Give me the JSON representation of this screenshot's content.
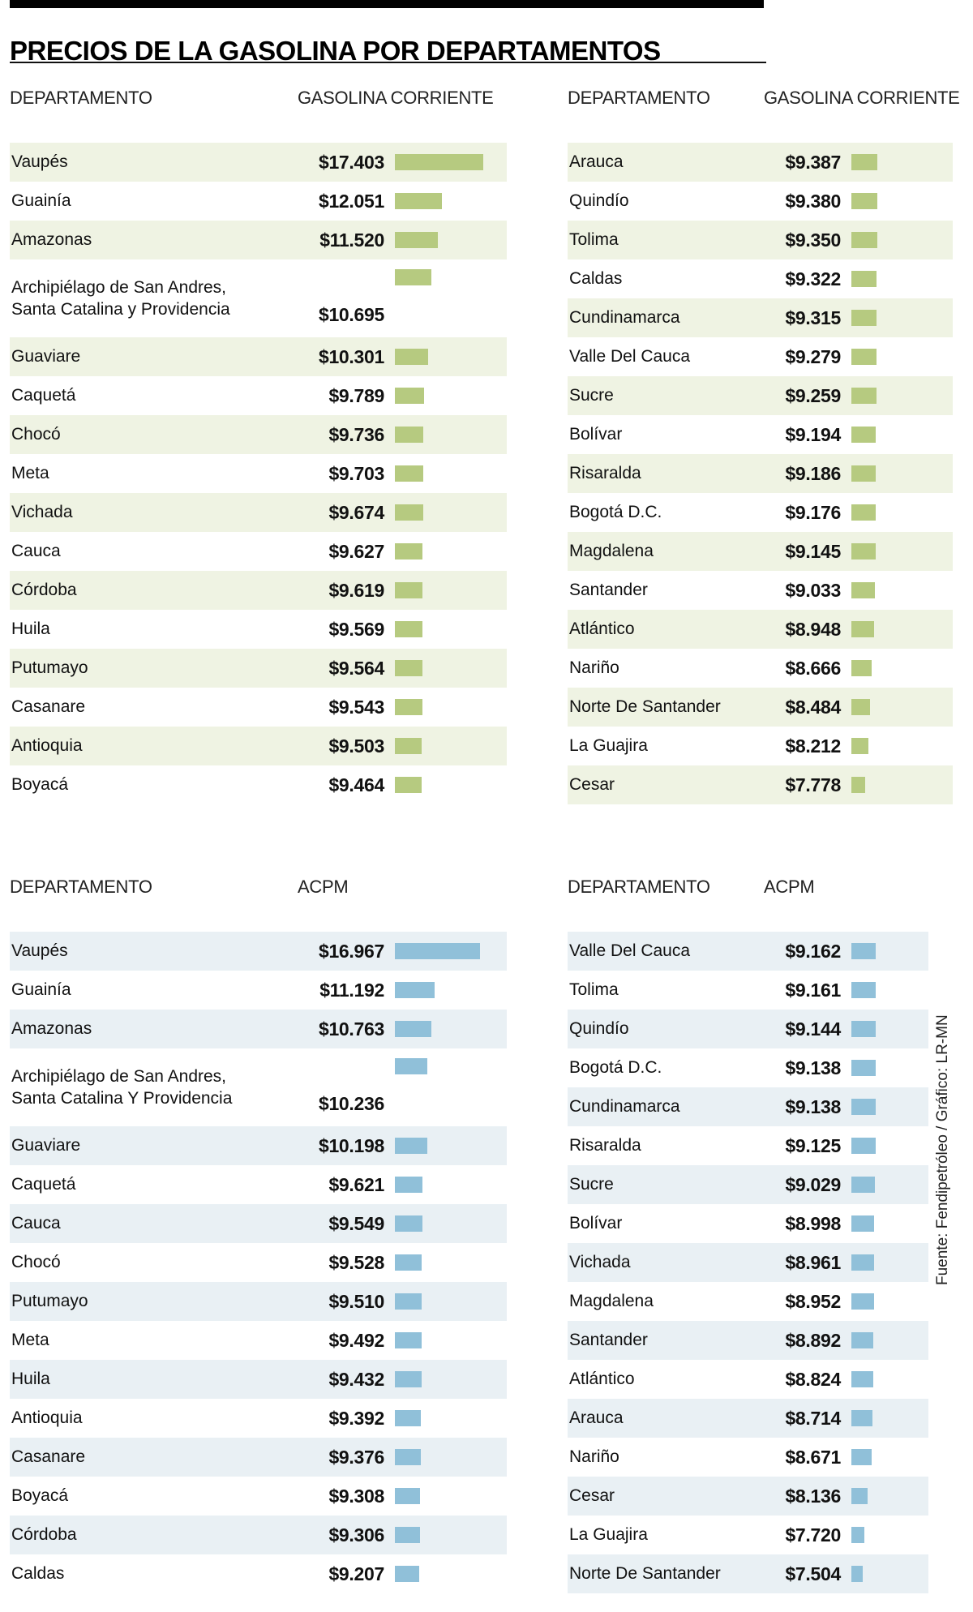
{
  "title": "PRECIOS DE LA GASOLINA POR DEPARTAMENTOS",
  "source_credit": "Fuente: Fendipetróleo  / Gráfico: LR-MN",
  "colors": {
    "gasolina_bar": "#b6ca80",
    "gasolina_row_tint": "#eff3e3",
    "acpm_bar": "#90c0d9",
    "acpm_row_tint": "#e9f0f4",
    "accent_bar": "#000000"
  },
  "chart_data": [
    {
      "type": "bar",
      "title": "GASOLINA CORRIENTE",
      "col_department": "DEPARTAMENTO",
      "col_value": "GASOLINA CORRIENTE",
      "legend_position": "none",
      "grid": false,
      "bar_color": "#b6ca80",
      "row_tint": "#eff3e3",
      "categories": [
        "Vaupés",
        "Guainía",
        "Amazonas",
        "Archipiélago de San Andres,\nSanta Catalina y Providencia",
        "Guaviare",
        "Caquetá",
        "Chocó",
        "Meta",
        "Vichada",
        "Cauca",
        "Córdoba",
        "Huila",
        "Putumayo",
        "Casanare",
        "Antioquia",
        "Boyacá"
      ],
      "values": [
        17403,
        12051,
        11520,
        10695,
        10301,
        9789,
        9736,
        9703,
        9674,
        9627,
        9619,
        9569,
        9564,
        9543,
        9503,
        9464
      ],
      "value_labels": [
        "$17.403",
        "$12.051",
        "$11.520",
        "$10.695",
        "$10.301",
        "$9.789",
        "$9.736",
        "$9.703",
        "$9.674",
        "$9.627",
        "$9.619",
        "$9.569",
        "$9.564",
        "$9.543",
        "$9.503",
        "$9.464"
      ]
    },
    {
      "type": "bar",
      "title": "GASOLINA CORRIENTE",
      "col_department": "DEPARTAMENTO",
      "col_value": "GASOLINA CORRIENTE",
      "legend_position": "none",
      "grid": false,
      "bar_color": "#b6ca80",
      "row_tint": "#eff3e3",
      "categories": [
        "Arauca",
        "Quindío",
        "Tolima",
        "Caldas",
        "Cundinamarca",
        "Valle Del Cauca",
        "Sucre",
        "Bolívar",
        "Risaralda",
        "Bogotá D.C.",
        "Magdalena",
        "Santander",
        "Atlántico",
        "Nariño",
        "Norte De Santander",
        "La Guajira",
        "Cesar"
      ],
      "values": [
        9387,
        9380,
        9350,
        9322,
        9315,
        9279,
        9259,
        9194,
        9186,
        9176,
        9145,
        9033,
        8948,
        8666,
        8484,
        8212,
        7778
      ],
      "value_labels": [
        "$9.387",
        "$9.380",
        "$9.350",
        "$9.322",
        "$9.315",
        "$9.279",
        "$9.259",
        "$9.194",
        "$9.186",
        "$9.176",
        "$9.145",
        "$9.033",
        "$8.948",
        "$8.666",
        "$8.484",
        "$8.212",
        "$7.778"
      ]
    },
    {
      "type": "bar",
      "title": "ACPM",
      "col_department": "DEPARTAMENTO",
      "col_value": "ACPM",
      "legend_position": "none",
      "grid": false,
      "bar_color": "#90c0d9",
      "row_tint": "#e9f0f4",
      "categories": [
        "Vaupés",
        "Guainía",
        "Amazonas",
        "Archipiélago de San Andres,\nSanta Catalina Y Providencia",
        "Guaviare",
        "Caquetá",
        "Cauca",
        "Chocó",
        "Putumayo",
        "Meta",
        "Huila",
        "Antioquia",
        "Casanare",
        "Boyacá",
        "Córdoba",
        "Caldas"
      ],
      "values": [
        16967,
        11192,
        10763,
        10236,
        10198,
        9621,
        9549,
        9528,
        9510,
        9492,
        9432,
        9392,
        9376,
        9308,
        9306,
        9207
      ],
      "value_labels": [
        "$16.967",
        "$11.192",
        "$10.763",
        "$10.236",
        "$10.198",
        "$9.621",
        "$9.549",
        "$9.528",
        "$9.510",
        "$9.492",
        "$9.432",
        "$9.392",
        "$9.376",
        "$9.308",
        "$9.306",
        "$9.207"
      ]
    },
    {
      "type": "bar",
      "title": "ACPM",
      "col_department": "DEPARTAMENTO",
      "col_value": "ACPM",
      "legend_position": "none",
      "grid": false,
      "bar_color": "#90c0d9",
      "row_tint": "#e9f0f4",
      "categories": [
        "Valle Del Cauca",
        "Tolima",
        "Quindío",
        "Bogotá D.C.",
        "Cundinamarca",
        "Risaralda",
        "Sucre",
        "Bolívar",
        "Vichada",
        "Magdalena",
        "Santander",
        "Atlántico",
        "Arauca",
        "Nariño",
        "Cesar",
        "La Guajira",
        "Norte De Santander"
      ],
      "values": [
        9162,
        9161,
        9144,
        9138,
        9138,
        9125,
        9029,
        8998,
        8961,
        8952,
        8892,
        8824,
        8714,
        8671,
        8136,
        7720,
        7504
      ],
      "value_labels": [
        "$9.162",
        "$9.161",
        "$9.144",
        "$9.138",
        "$9.138",
        "$9.125",
        "$9.029",
        "$8.998",
        "$8.961",
        "$8.952",
        "$8.892",
        "$8.824",
        "$8.714",
        "$8.671",
        "$8.136",
        "$7.720",
        "$7.504"
      ]
    }
  ]
}
